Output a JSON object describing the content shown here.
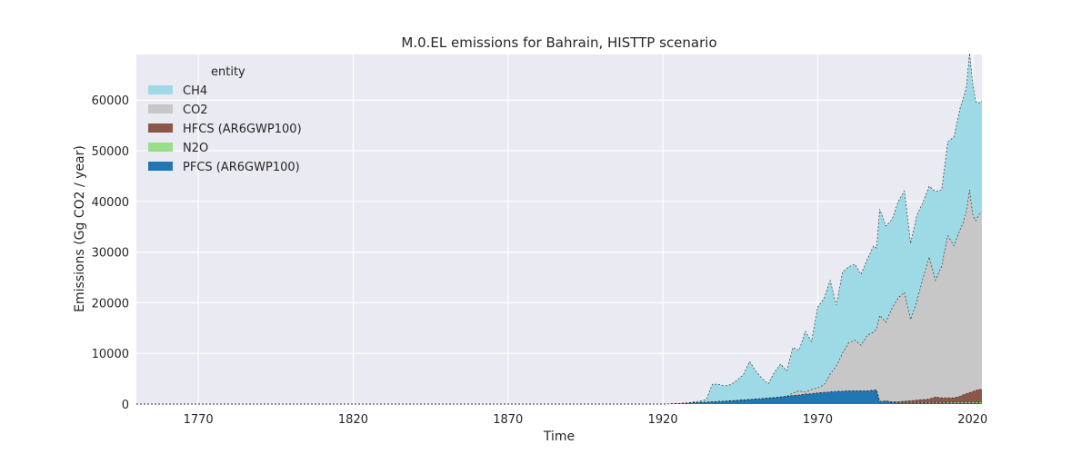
{
  "chart_data": {
    "type": "area",
    "stacked": true,
    "title": "M.0.EL emissions for Bahrain, HISTTP scenario",
    "xlabel": "Time",
    "ylabel": "Emissions (Gg CO2 / year)",
    "xlim": [
      1750,
      2023
    ],
    "ylim": [
      0,
      69000
    ],
    "xticks": [
      1770,
      1820,
      1870,
      1920,
      1970,
      2020
    ],
    "yticks": [
      0,
      10000,
      20000,
      30000,
      40000,
      50000,
      60000
    ],
    "grid": true,
    "background": "#eaeaf2",
    "legend": {
      "title": "entity",
      "placement": "top-left"
    },
    "x": [
      1750,
      1800,
      1850,
      1900,
      1920,
      1925,
      1928,
      1931,
      1934,
      1936,
      1938,
      1940,
      1942,
      1944,
      1946,
      1948,
      1950,
      1952,
      1954,
      1956,
      1958,
      1960,
      1962,
      1964,
      1966,
      1968,
      1970,
      1972,
      1974,
      1976,
      1978,
      1980,
      1982,
      1984,
      1986,
      1988,
      1989,
      1990,
      1992,
      1994,
      1996,
      1998,
      2000,
      2002,
      2004,
      2006,
      2008,
      2010,
      2012,
      2014,
      2016,
      2017,
      2018,
      2019,
      2020,
      2021,
      2022,
      2023
    ],
    "series": [
      {
        "name": "PFCS (AR6GWP100)",
        "color": "#1f77b4",
        "values": [
          0,
          0,
          0,
          0,
          0,
          100,
          200,
          300,
          380,
          450,
          500,
          580,
          650,
          730,
          820,
          900,
          1000,
          1080,
          1180,
          1280,
          1400,
          1550,
          1680,
          1800,
          1950,
          2050,
          2200,
          2300,
          2400,
          2500,
          2550,
          2600,
          2600,
          2600,
          2600,
          2700,
          2800,
          500,
          600,
          300,
          200,
          200,
          200,
          200,
          200,
          200,
          200,
          200,
          200,
          200,
          200,
          200,
          200,
          200,
          200,
          200,
          200,
          200
        ]
      },
      {
        "name": "N2O",
        "color": "#98df8a",
        "values": [
          0,
          0,
          0,
          0,
          0,
          0,
          0,
          0,
          0,
          0,
          0,
          0,
          0,
          0,
          0,
          0,
          0,
          0,
          0,
          0,
          0,
          0,
          0,
          0,
          0,
          0,
          0,
          0,
          0,
          0,
          0,
          0,
          0,
          0,
          0,
          0,
          0,
          0,
          0,
          50,
          60,
          70,
          80,
          90,
          100,
          110,
          120,
          130,
          140,
          150,
          160,
          160,
          170,
          170,
          170,
          180,
          180,
          180
        ]
      },
      {
        "name": "HFCS (AR6GWP100)",
        "color": "#8c564b",
        "values": [
          0,
          0,
          0,
          0,
          0,
          0,
          0,
          0,
          0,
          0,
          0,
          0,
          0,
          0,
          0,
          0,
          0,
          0,
          0,
          0,
          0,
          0,
          0,
          0,
          0,
          0,
          0,
          0,
          0,
          0,
          0,
          0,
          0,
          0,
          0,
          0,
          0,
          0,
          50,
          100,
          200,
          300,
          400,
          500,
          600,
          700,
          1100,
          900,
          900,
          900,
          1200,
          1500,
          1700,
          1900,
          2100,
          2300,
          2500,
          2500
        ]
      },
      {
        "name": "CO2",
        "color": "#c7c7c7",
        "values": [
          0,
          0,
          0,
          0,
          0,
          0,
          0,
          0,
          0,
          0,
          0,
          0,
          0,
          0,
          0,
          0,
          0,
          0,
          0,
          0,
          0,
          0,
          500,
          800,
          400,
          800,
          1000,
          1500,
          3500,
          5000,
          7500,
          9500,
          10000,
          9000,
          11000,
          11500,
          12000,
          17000,
          15500,
          18500,
          20500,
          21500,
          16000,
          19500,
          24000,
          28000,
          23000,
          26000,
          32000,
          30000,
          33000,
          34000,
          36000,
          40000,
          35000,
          33500,
          34500,
          35000
        ]
      },
      {
        "name": "CH4",
        "color": "#9edae5",
        "values": [
          0,
          0,
          0,
          0,
          0,
          0,
          50,
          200,
          500,
          3500,
          3400,
          3000,
          3200,
          4000,
          5000,
          7500,
          5500,
          4000,
          2800,
          5000,
          6500,
          5000,
          9000,
          8000,
          12000,
          9500,
          16000,
          17000,
          18500,
          12000,
          16000,
          15000,
          15000,
          14000,
          15000,
          17000,
          16000,
          21000,
          19000,
          17500,
          19000,
          20000,
          15000,
          17000,
          15000,
          14000,
          17500,
          15000,
          18500,
          21500,
          24000,
          24500,
          24500,
          27000,
          26000,
          23500,
          22000,
          22000
        ]
      }
    ],
    "total_line": {
      "style": "dashed",
      "color": "#000000"
    }
  }
}
